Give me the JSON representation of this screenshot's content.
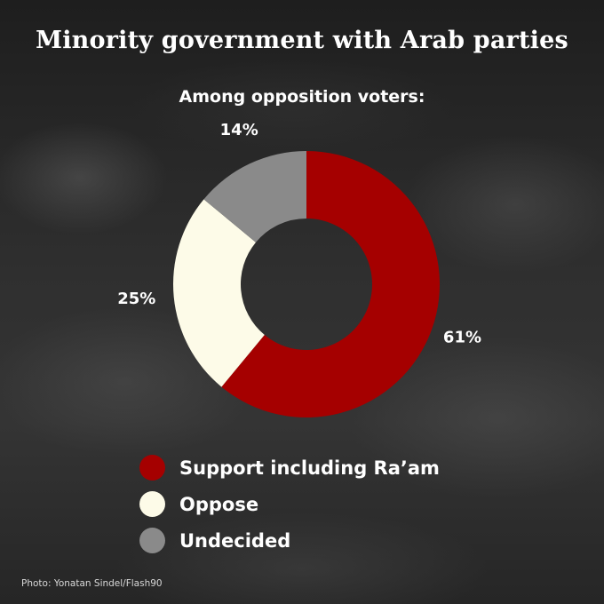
{
  "title": "Minority government with Arab parties",
  "subtitle": "Among opposition voters:",
  "chart_data": {
    "type": "pie",
    "donut": true,
    "title": "Minority government with Arab parties",
    "subtitle": "Among opposition voters:",
    "categories": [
      "Support including Ra’am",
      "Oppose",
      "Undecided"
    ],
    "values": [
      61,
      25,
      14
    ],
    "data_labels": [
      "61%",
      "25%",
      "14%"
    ],
    "colors": [
      "#a50000",
      "#fdfbe8",
      "#8a8a8a"
    ],
    "legend_position": "bottom"
  },
  "legend": [
    {
      "label": "Support including Ra’am",
      "color": "#a50000"
    },
    {
      "label": "Oppose",
      "color": "#fdfbe8"
    },
    {
      "label": "Undecided",
      "color": "#8a8a8a"
    }
  ],
  "credit": "Photo: Yonatan Sindel/Flash90"
}
